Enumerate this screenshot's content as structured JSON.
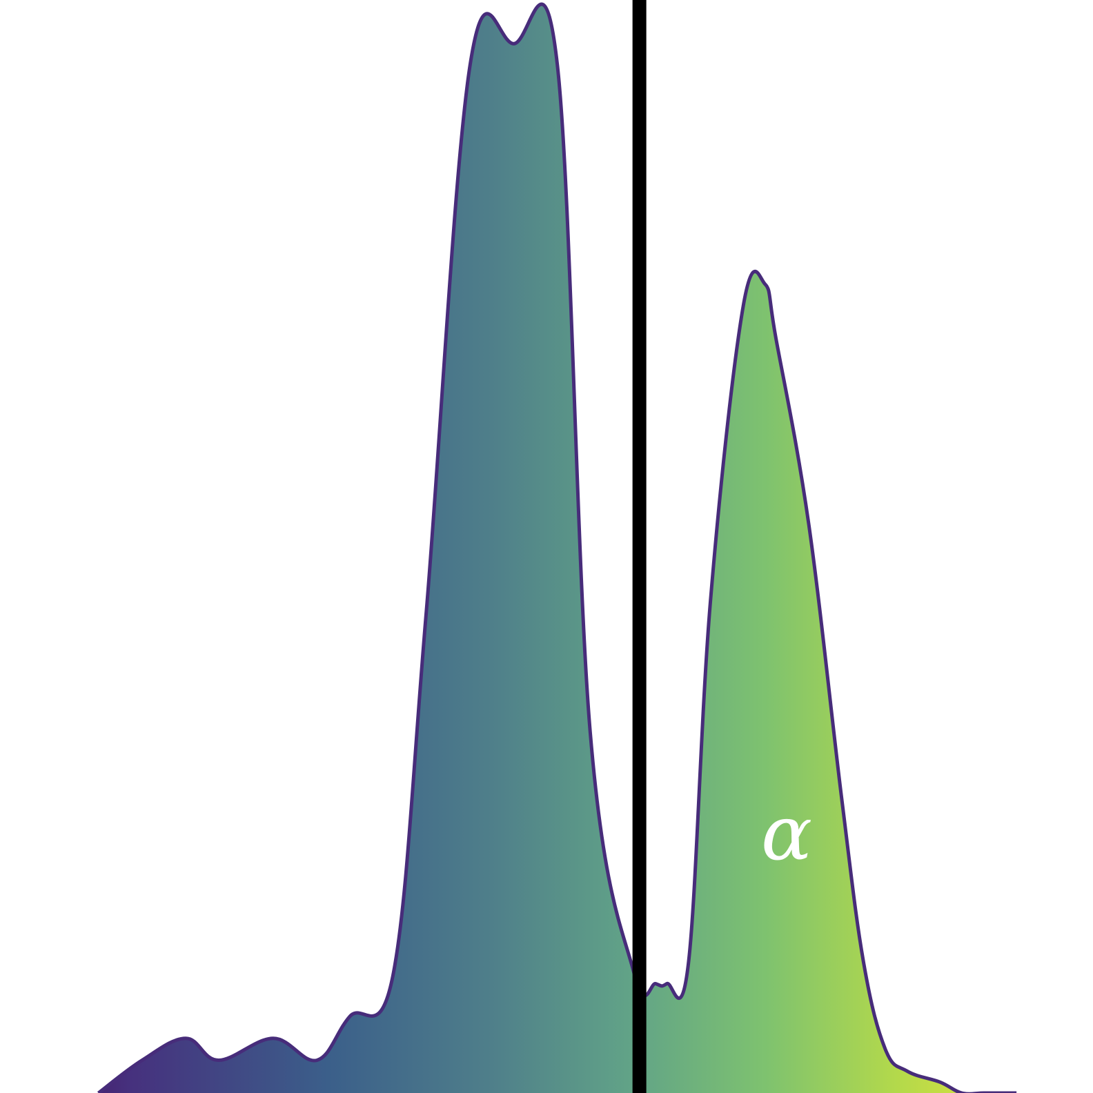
{
  "chart_data": {
    "type": "area",
    "title": "",
    "xlabel": "",
    "ylabel": "",
    "grid": false,
    "legend": "none",
    "xlim": [
      0,
      1
    ],
    "ylim": [
      0,
      1
    ],
    "x": [
      0.09,
      0.13,
      0.17,
      0.2,
      0.25,
      0.29,
      0.32,
      0.36,
      0.39,
      0.43,
      0.47,
      0.51,
      0.54,
      0.58,
      0.6,
      0.61,
      0.63,
      0.65,
      0.68,
      0.7,
      0.71,
      0.74,
      0.77,
      0.79,
      0.81,
      0.83,
      0.86,
      0.88,
      0.9,
      0.92,
      0.93
    ],
    "y": [
      0.0,
      0.03,
      0.05,
      0.03,
      0.05,
      0.03,
      0.07,
      0.11,
      0.44,
      0.94,
      0.96,
      0.94,
      0.33,
      0.11,
      0.1,
      0.1,
      0.12,
      0.45,
      0.72,
      0.74,
      0.69,
      0.52,
      0.27,
      0.12,
      0.04,
      0.02,
      0.01,
      0.0,
      0.0,
      0.0,
      0.0
    ],
    "colormap": [
      "#440154",
      "#3b528b",
      "#21918c",
      "#5ec962",
      "#fde725"
    ],
    "line_color": "#472c7a",
    "vline": {
      "x": 0.585,
      "color": "#000000"
    },
    "annotation": "α"
  }
}
